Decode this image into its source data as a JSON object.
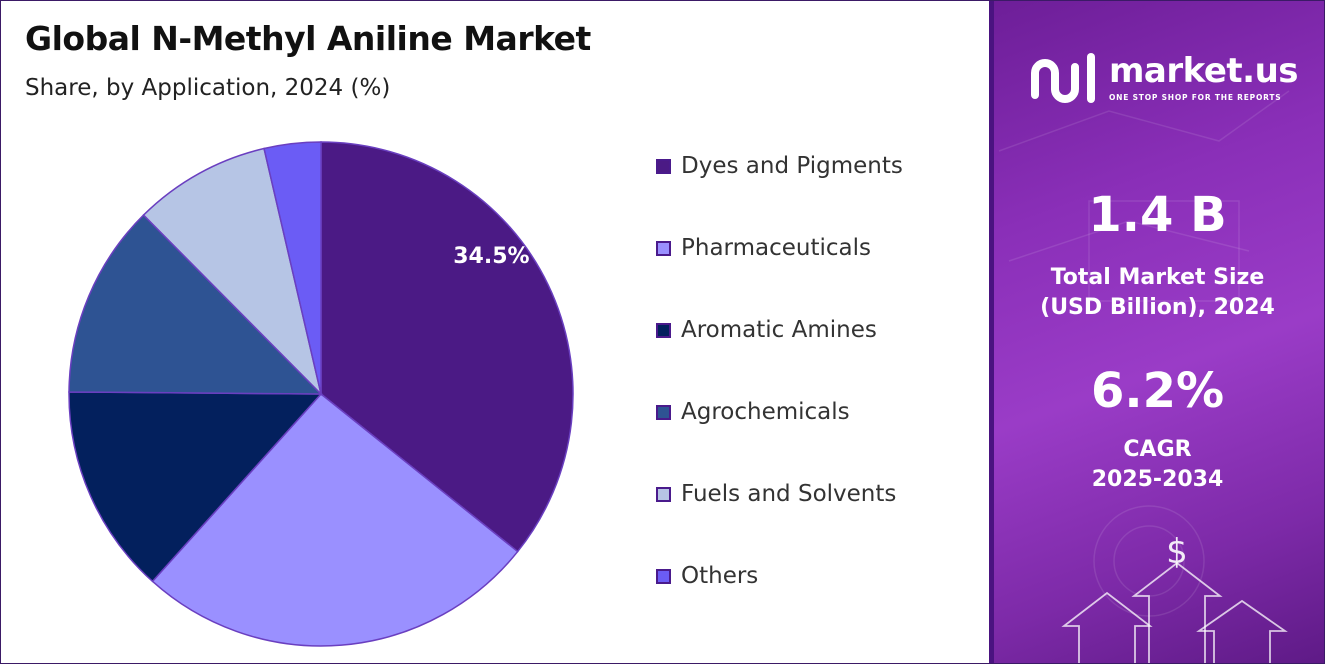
{
  "header": {
    "title": "Global N-Methyl Aniline Market",
    "subtitle": "Share, by Application, 2024 (%)"
  },
  "chart_data": {
    "type": "pie",
    "title": "Global N-Methyl Aniline Market",
    "subtitle": "Share, by Application, 2024 (%)",
    "categories": [
      "Dyes and Pigments",
      "Pharmaceuticals",
      "Aromatic Amines",
      "Agrochemicals",
      "Fuels and Solvents",
      "Others"
    ],
    "values": [
      34.5,
      25.0,
      13.0,
      12.0,
      8.5,
      3.5
    ],
    "colors": [
      "#4b1a85",
      "#9a90ff",
      "#03205d",
      "#2e5393",
      "#b6c5e5",
      "#6b5cf5"
    ],
    "data_labels": [
      "34.5%",
      "",
      "",
      "",
      "",
      ""
    ],
    "legend": "right"
  },
  "legend": {
    "items": [
      {
        "label": "Dyes and Pigments",
        "color": "#4b1a85"
      },
      {
        "label": "Pharmaceuticals",
        "color": "#9a90ff"
      },
      {
        "label": "Aromatic Amines",
        "color": "#03205d"
      },
      {
        "label": "Agrochemicals",
        "color": "#2e5393"
      },
      {
        "label": "Fuels and Solvents",
        "color": "#b6c5e5"
      },
      {
        "label": "Others",
        "color": "#6b5cf5"
      }
    ]
  },
  "brand": {
    "name": "market.us",
    "tagline": "ONE STOP SHOP FOR THE REPORTS",
    "logo_icon": "market-us-logo-icon"
  },
  "stats": {
    "market_size_value": "1.4 B",
    "market_size_label_line1": "Total Market Size",
    "market_size_label_line2": "(USD Billion), 2024",
    "cagr_value": "6.2%",
    "cagr_label_line1": "CAGR",
    "cagr_label_line2": "2025-2034"
  },
  "decor": {
    "dollar_symbol": "$"
  }
}
